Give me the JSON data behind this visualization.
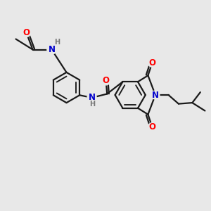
{
  "bg_color": "#e8e8e8",
  "bond_color": "#1a1a1a",
  "bond_width": 1.6,
  "atom_colors": {
    "O": "#ff0000",
    "N": "#0000cc",
    "H": "#777777",
    "C": "#1a1a1a"
  },
  "font_size_atom": 8.5,
  "font_size_H": 7.0
}
